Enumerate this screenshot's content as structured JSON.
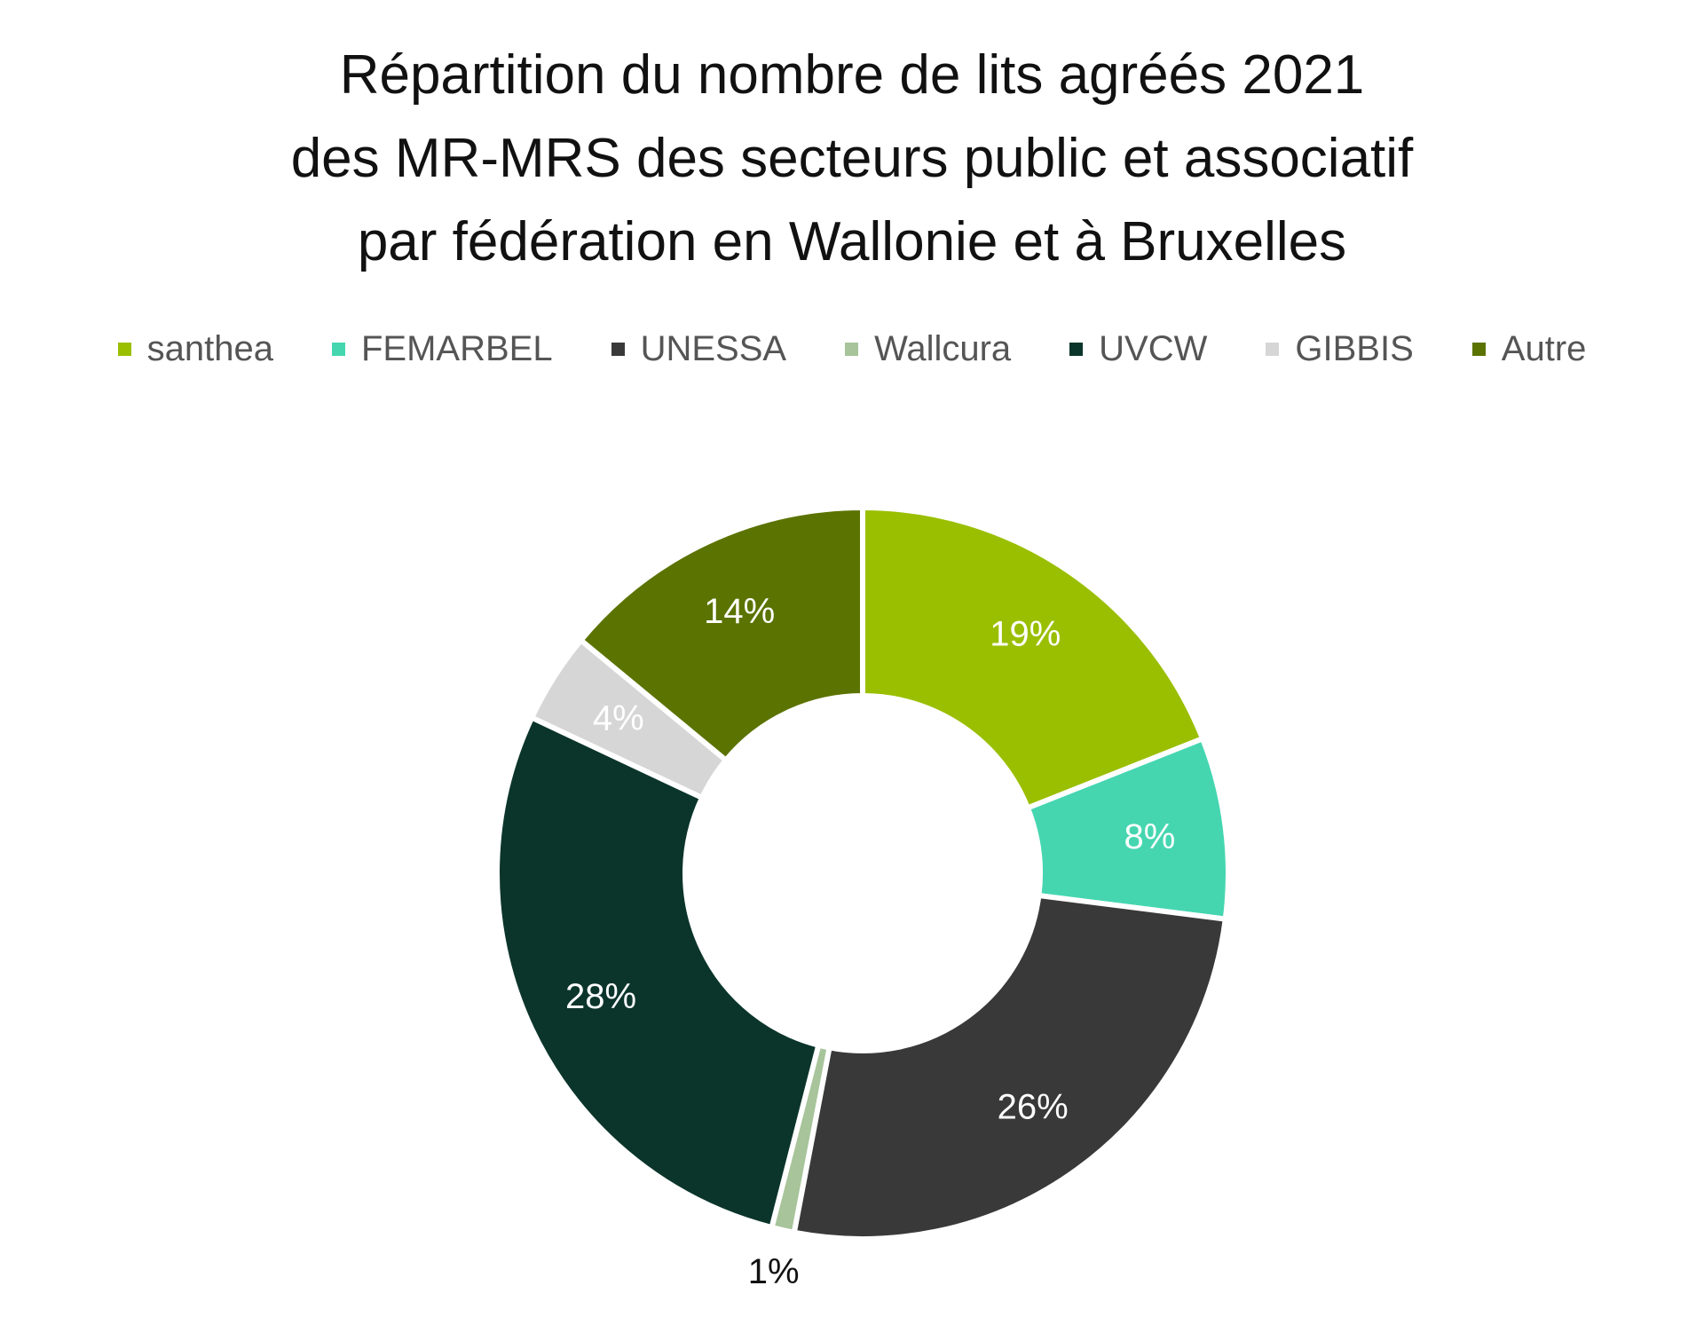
{
  "chart_data": {
    "type": "pie",
    "style": "donut",
    "title_lines": [
      "Répartition du nombre de lits agréés 2021",
      "des MR-MRS des secteurs public et associatif",
      "par fédération en Wallonie et à Bruxelles"
    ],
    "legend_position": "top",
    "slices": [
      {
        "name": "santhea",
        "value": 19,
        "label": "19%",
        "color": "#9abf00",
        "label_color": "#ffffff"
      },
      {
        "name": "FEMARBEL",
        "value": 8,
        "label": "8%",
        "color": "#45d6b0",
        "label_color": "#ffffff"
      },
      {
        "name": "UNESSA",
        "value": 26,
        "label": "26%",
        "color": "#3a393a",
        "label_color": "#ffffff"
      },
      {
        "name": "Wallcura",
        "value": 1,
        "label": "1%",
        "color": "#a7c49a",
        "label_color": "#111111"
      },
      {
        "name": "UVCW",
        "value": 28,
        "label": "28%",
        "color": "#0b352b",
        "label_color": "#ffffff"
      },
      {
        "name": "GIBBIS",
        "value": 4,
        "label": "4%",
        "color": "#d6d6d6",
        "label_color": "#ffffff"
      },
      {
        "name": "Autre",
        "value": 14,
        "label": "14%",
        "color": "#5b7300",
        "label_color": "#ffffff"
      }
    ]
  }
}
